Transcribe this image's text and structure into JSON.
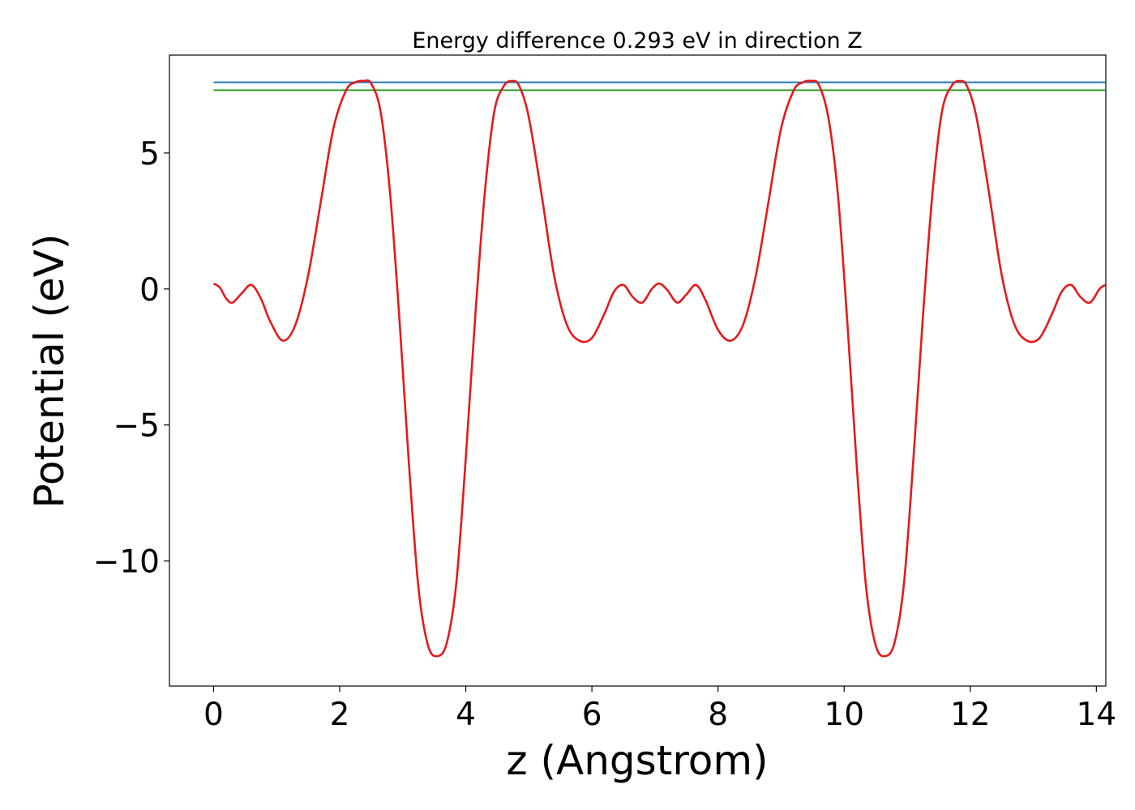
{
  "chart_data": {
    "type": "line",
    "title": "Energy difference 0.293 eV in direction Z",
    "xlabel": "z (Angstrom)",
    "ylabel": "Potential (eV)",
    "xlim": [
      -0.7,
      14.15
    ],
    "ylim": [
      -14.6,
      8.6
    ],
    "grid": false,
    "x_ticks": [
      {
        "value": 0,
        "label": "0"
      },
      {
        "value": 2,
        "label": "2"
      },
      {
        "value": 4,
        "label": "4"
      },
      {
        "value": 6,
        "label": "6"
      },
      {
        "value": 8,
        "label": "8"
      },
      {
        "value": 10,
        "label": "10"
      },
      {
        "value": 12,
        "label": "12"
      },
      {
        "value": 14,
        "label": "14"
      }
    ],
    "y_ticks": [
      {
        "value": 5,
        "label": "5"
      },
      {
        "value": 0,
        "label": "0"
      },
      {
        "value": -5,
        "label": "−5"
      },
      {
        "value": -10,
        "label": "−10"
      }
    ],
    "series": [
      {
        "color": "#e41a1c",
        "x": [
          0.0,
          0.1,
          0.2,
          0.3,
          0.45,
          0.6,
          0.75,
          0.9,
          1.1,
          1.3,
          1.5,
          1.7,
          1.9,
          2.1,
          2.25,
          2.38,
          2.5,
          2.65,
          2.8,
          2.95,
          3.1,
          3.25,
          3.4,
          3.55,
          3.7,
          3.85,
          4.0,
          4.15,
          4.3,
          4.45,
          4.6,
          4.73,
          4.85,
          5.0,
          5.2,
          5.4,
          5.6,
          5.8,
          6.0,
          6.2,
          6.35,
          6.5,
          6.65,
          6.8,
          6.95,
          7.07,
          7.2,
          7.35,
          7.5,
          7.65,
          7.8,
          8.0,
          8.2,
          8.4,
          8.6,
          8.8,
          9.0,
          9.2,
          9.35,
          9.47,
          9.6,
          9.75,
          9.9,
          10.05,
          10.2,
          10.35,
          10.5,
          10.65,
          10.8,
          10.95,
          11.1,
          11.25,
          11.4,
          11.55,
          11.7,
          11.83,
          11.95,
          12.1,
          12.3,
          12.5,
          12.7,
          12.9,
          13.1,
          13.3,
          13.45,
          13.6,
          13.75,
          13.9,
          14.05,
          14.14
        ],
        "y": [
          0.2,
          0.05,
          -0.35,
          -0.5,
          -0.15,
          0.15,
          -0.35,
          -1.2,
          -1.9,
          -1.3,
          0.5,
          3.2,
          5.9,
          7.3,
          7.6,
          7.65,
          7.55,
          6.5,
          3.5,
          -1.2,
          -6.5,
          -11.0,
          -13.1,
          -13.5,
          -13.0,
          -10.8,
          -6.2,
          -1.0,
          3.5,
          6.5,
          7.45,
          7.65,
          7.45,
          6.3,
          3.5,
          0.5,
          -1.3,
          -1.9,
          -1.8,
          -0.9,
          -0.1,
          0.15,
          -0.3,
          -0.5,
          0.0,
          0.2,
          -0.05,
          -0.5,
          -0.2,
          0.15,
          -0.4,
          -1.5,
          -1.9,
          -1.3,
          0.5,
          3.2,
          5.9,
          7.3,
          7.6,
          7.65,
          7.5,
          6.3,
          3.5,
          -1.2,
          -6.5,
          -11.0,
          -13.1,
          -13.5,
          -13.0,
          -10.8,
          -6.2,
          -1.0,
          3.5,
          6.5,
          7.45,
          7.65,
          7.45,
          6.3,
          3.5,
          0.5,
          -1.3,
          -1.9,
          -1.8,
          -0.9,
          -0.1,
          0.15,
          -0.3,
          -0.5,
          0.0,
          0.15
        ]
      },
      {
        "color": "#1f77b4",
        "x": [
          0.0,
          14.14
        ],
        "y": [
          7.6,
          7.6
        ]
      },
      {
        "color": "#2ca02c",
        "x": [
          0.0,
          14.14
        ],
        "y": [
          7.307,
          7.307
        ]
      }
    ]
  }
}
